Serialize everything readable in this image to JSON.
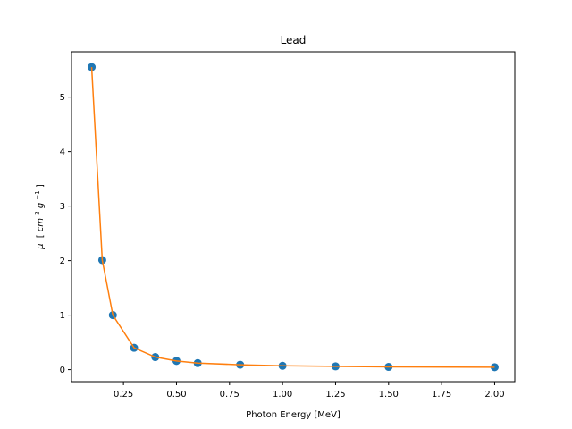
{
  "chart_data": {
    "type": "scatter",
    "title": "Lead",
    "xlabel": "Photon Energy [MeV]",
    "ylabel": {
      "mu": "μ",
      "open": "[",
      "cm": "cm",
      "cm_exp": "2",
      "g": "g",
      "g_exp": "−1",
      "close": "]"
    },
    "xlim": [
      0.005,
      2.095
    ],
    "ylim": [
      -0.22,
      5.83
    ],
    "xticks": [
      0.25,
      0.5,
      0.75,
      1.0,
      1.25,
      1.5,
      1.75,
      2.0
    ],
    "xtick_labels": [
      "0.25",
      "0.50",
      "0.75",
      "1.00",
      "1.25",
      "1.50",
      "1.75",
      "2.00"
    ],
    "yticks": [
      0,
      1,
      2,
      3,
      4,
      5
    ],
    "ytick_labels": [
      "0",
      "1",
      "2",
      "3",
      "4",
      "5"
    ],
    "grid": false,
    "series": [
      {
        "kind": "points",
        "color": "#1f77b4",
        "x": [
          0.1,
          0.15,
          0.2,
          0.3,
          0.4,
          0.5,
          0.6,
          0.8,
          1.0,
          1.25,
          1.5,
          2.0
        ],
        "y": [
          5.55,
          2.01,
          1.0,
          0.4,
          0.23,
          0.16,
          0.12,
          0.09,
          0.07,
          0.06,
          0.05,
          0.045
        ]
      },
      {
        "kind": "line",
        "color": "#ff7f0e",
        "x": [
          0.1,
          0.15,
          0.2,
          0.3,
          0.4,
          0.5,
          0.6,
          0.8,
          1.0,
          1.25,
          1.5,
          2.0
        ],
        "y": [
          5.55,
          2.01,
          1.0,
          0.4,
          0.23,
          0.16,
          0.12,
          0.09,
          0.07,
          0.06,
          0.05,
          0.045
        ]
      }
    ]
  }
}
